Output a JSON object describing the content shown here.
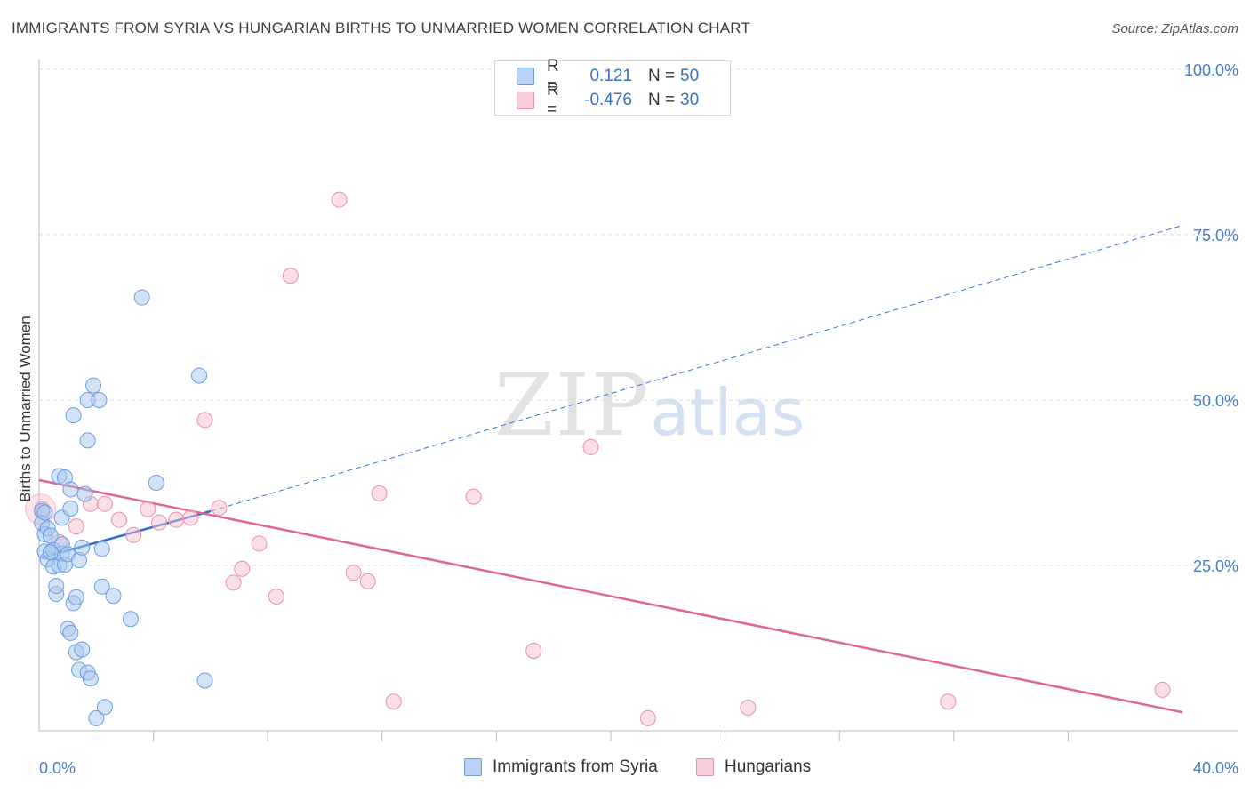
{
  "header": {
    "title": "IMMIGRANTS FROM SYRIA VS HUNGARIAN BIRTHS TO UNMARRIED WOMEN CORRELATION CHART",
    "source": "Source: ZipAtlas.com"
  },
  "watermark": {
    "zip": "ZIP",
    "atlas": "atlas"
  },
  "legend": {
    "rows": [
      {
        "r_label": "R =",
        "r_value": "0.121",
        "n_label": "N =",
        "n_value": "50",
        "color": "#a8c8f0",
        "border": "#6a9ee0"
      },
      {
        "r_label": "R =",
        "r_value": "-0.476",
        "n_label": "N =",
        "n_value": "30",
        "color": "#f7c0d0",
        "border": "#e890ac"
      }
    ]
  },
  "bottom_legend": {
    "series1": "Immigrants from Syria",
    "series2": "Hungarians"
  },
  "chart_data": {
    "type": "scatter",
    "title": "IMMIGRANTS FROM SYRIA VS HUNGARIAN BIRTHS TO UNMARRIED WOMEN CORRELATION CHART",
    "xlabel": "",
    "ylabel": "Births to Unmarried Women",
    "xlim": [
      0,
      40
    ],
    "ylim": [
      0,
      100
    ],
    "x_tick_labels": [
      "0.0%",
      "40.0%"
    ],
    "y_tick_labels": [
      "25.0%",
      "50.0%",
      "75.0%",
      "100.0%"
    ],
    "y_tick_values": [
      25,
      50,
      75,
      100
    ],
    "x_minor_ticks": [
      4,
      8,
      12,
      16,
      20,
      24,
      28,
      32,
      36
    ],
    "grid": true,
    "series": [
      {
        "name": "Immigrants from Syria",
        "color": "#a8c8f0",
        "stroke": "#6a9ee0",
        "r": 0.121,
        "n": 50,
        "trend": {
          "x0": 0.1,
          "y0": 26.2,
          "x1": 6.0,
          "y1": 33.2,
          "extend_to_x": 40,
          "extend_y": 76.4
        },
        "points": [
          [
            0.1,
            33.2
          ],
          [
            0.1,
            31.4
          ],
          [
            0.2,
            29.7
          ],
          [
            0.2,
            27.1
          ],
          [
            0.3,
            25.9
          ],
          [
            0.3,
            30.6
          ],
          [
            0.4,
            29.5
          ],
          [
            0.5,
            24.8
          ],
          [
            0.5,
            27.3
          ],
          [
            0.6,
            20.7
          ],
          [
            0.6,
            21.9
          ],
          [
            0.7,
            25.0
          ],
          [
            0.7,
            38.5
          ],
          [
            0.8,
            32.2
          ],
          [
            0.8,
            26.8
          ],
          [
            0.8,
            28.2
          ],
          [
            0.9,
            38.3
          ],
          [
            0.9,
            25.1
          ],
          [
            1.0,
            15.4
          ],
          [
            1.0,
            26.7
          ],
          [
            1.1,
            14.8
          ],
          [
            1.1,
            33.6
          ],
          [
            1.1,
            36.5
          ],
          [
            1.2,
            47.7
          ],
          [
            1.2,
            19.3
          ],
          [
            1.3,
            11.9
          ],
          [
            1.3,
            20.2
          ],
          [
            1.4,
            9.2
          ],
          [
            1.4,
            25.8
          ],
          [
            1.5,
            12.3
          ],
          [
            1.5,
            27.7
          ],
          [
            1.6,
            35.8
          ],
          [
            1.7,
            8.8
          ],
          [
            1.7,
            50.0
          ],
          [
            1.7,
            43.9
          ],
          [
            1.8,
            7.9
          ],
          [
            1.9,
            52.2
          ],
          [
            2.0,
            1.9
          ],
          [
            2.1,
            50.0
          ],
          [
            2.2,
            27.5
          ],
          [
            2.2,
            21.8
          ],
          [
            2.6,
            20.4
          ],
          [
            3.2,
            16.9
          ],
          [
            3.6,
            65.5
          ],
          [
            4.1,
            37.5
          ],
          [
            5.6,
            53.7
          ],
          [
            5.8,
            7.6
          ],
          [
            2.3,
            3.6
          ],
          [
            0.2,
            33.0
          ],
          [
            0.4,
            27.0
          ]
        ]
      },
      {
        "name": "Hungarians",
        "color": "#f7c0d0",
        "stroke": "#e890ac",
        "r": -0.476,
        "n": 30,
        "trend": {
          "x0": 0,
          "y0": 37.9,
          "x1": 40,
          "y1": 2.8
        },
        "points": [
          [
            0.1,
            33.5
          ],
          [
            0.7,
            28.5
          ],
          [
            1.3,
            30.9
          ],
          [
            1.8,
            34.3
          ],
          [
            2.3,
            34.3
          ],
          [
            2.8,
            31.9
          ],
          [
            3.3,
            29.6
          ],
          [
            3.8,
            33.5
          ],
          [
            4.2,
            31.5
          ],
          [
            4.8,
            31.9
          ],
          [
            5.3,
            32.2
          ],
          [
            5.8,
            47.0
          ],
          [
            6.3,
            33.7
          ],
          [
            6.8,
            22.4
          ],
          [
            7.1,
            24.5
          ],
          [
            7.7,
            28.3
          ],
          [
            8.3,
            20.3
          ],
          [
            8.8,
            68.8
          ],
          [
            10.5,
            80.3
          ],
          [
            11.0,
            23.9
          ],
          [
            11.5,
            22.6
          ],
          [
            11.9,
            35.9
          ],
          [
            12.4,
            4.4
          ],
          [
            15.2,
            35.4
          ],
          [
            17.3,
            12.1
          ],
          [
            19.3,
            42.9
          ],
          [
            21.3,
            1.9
          ],
          [
            24.8,
            3.5
          ],
          [
            31.8,
            4.4
          ],
          [
            39.3,
            6.2
          ]
        ]
      }
    ]
  }
}
